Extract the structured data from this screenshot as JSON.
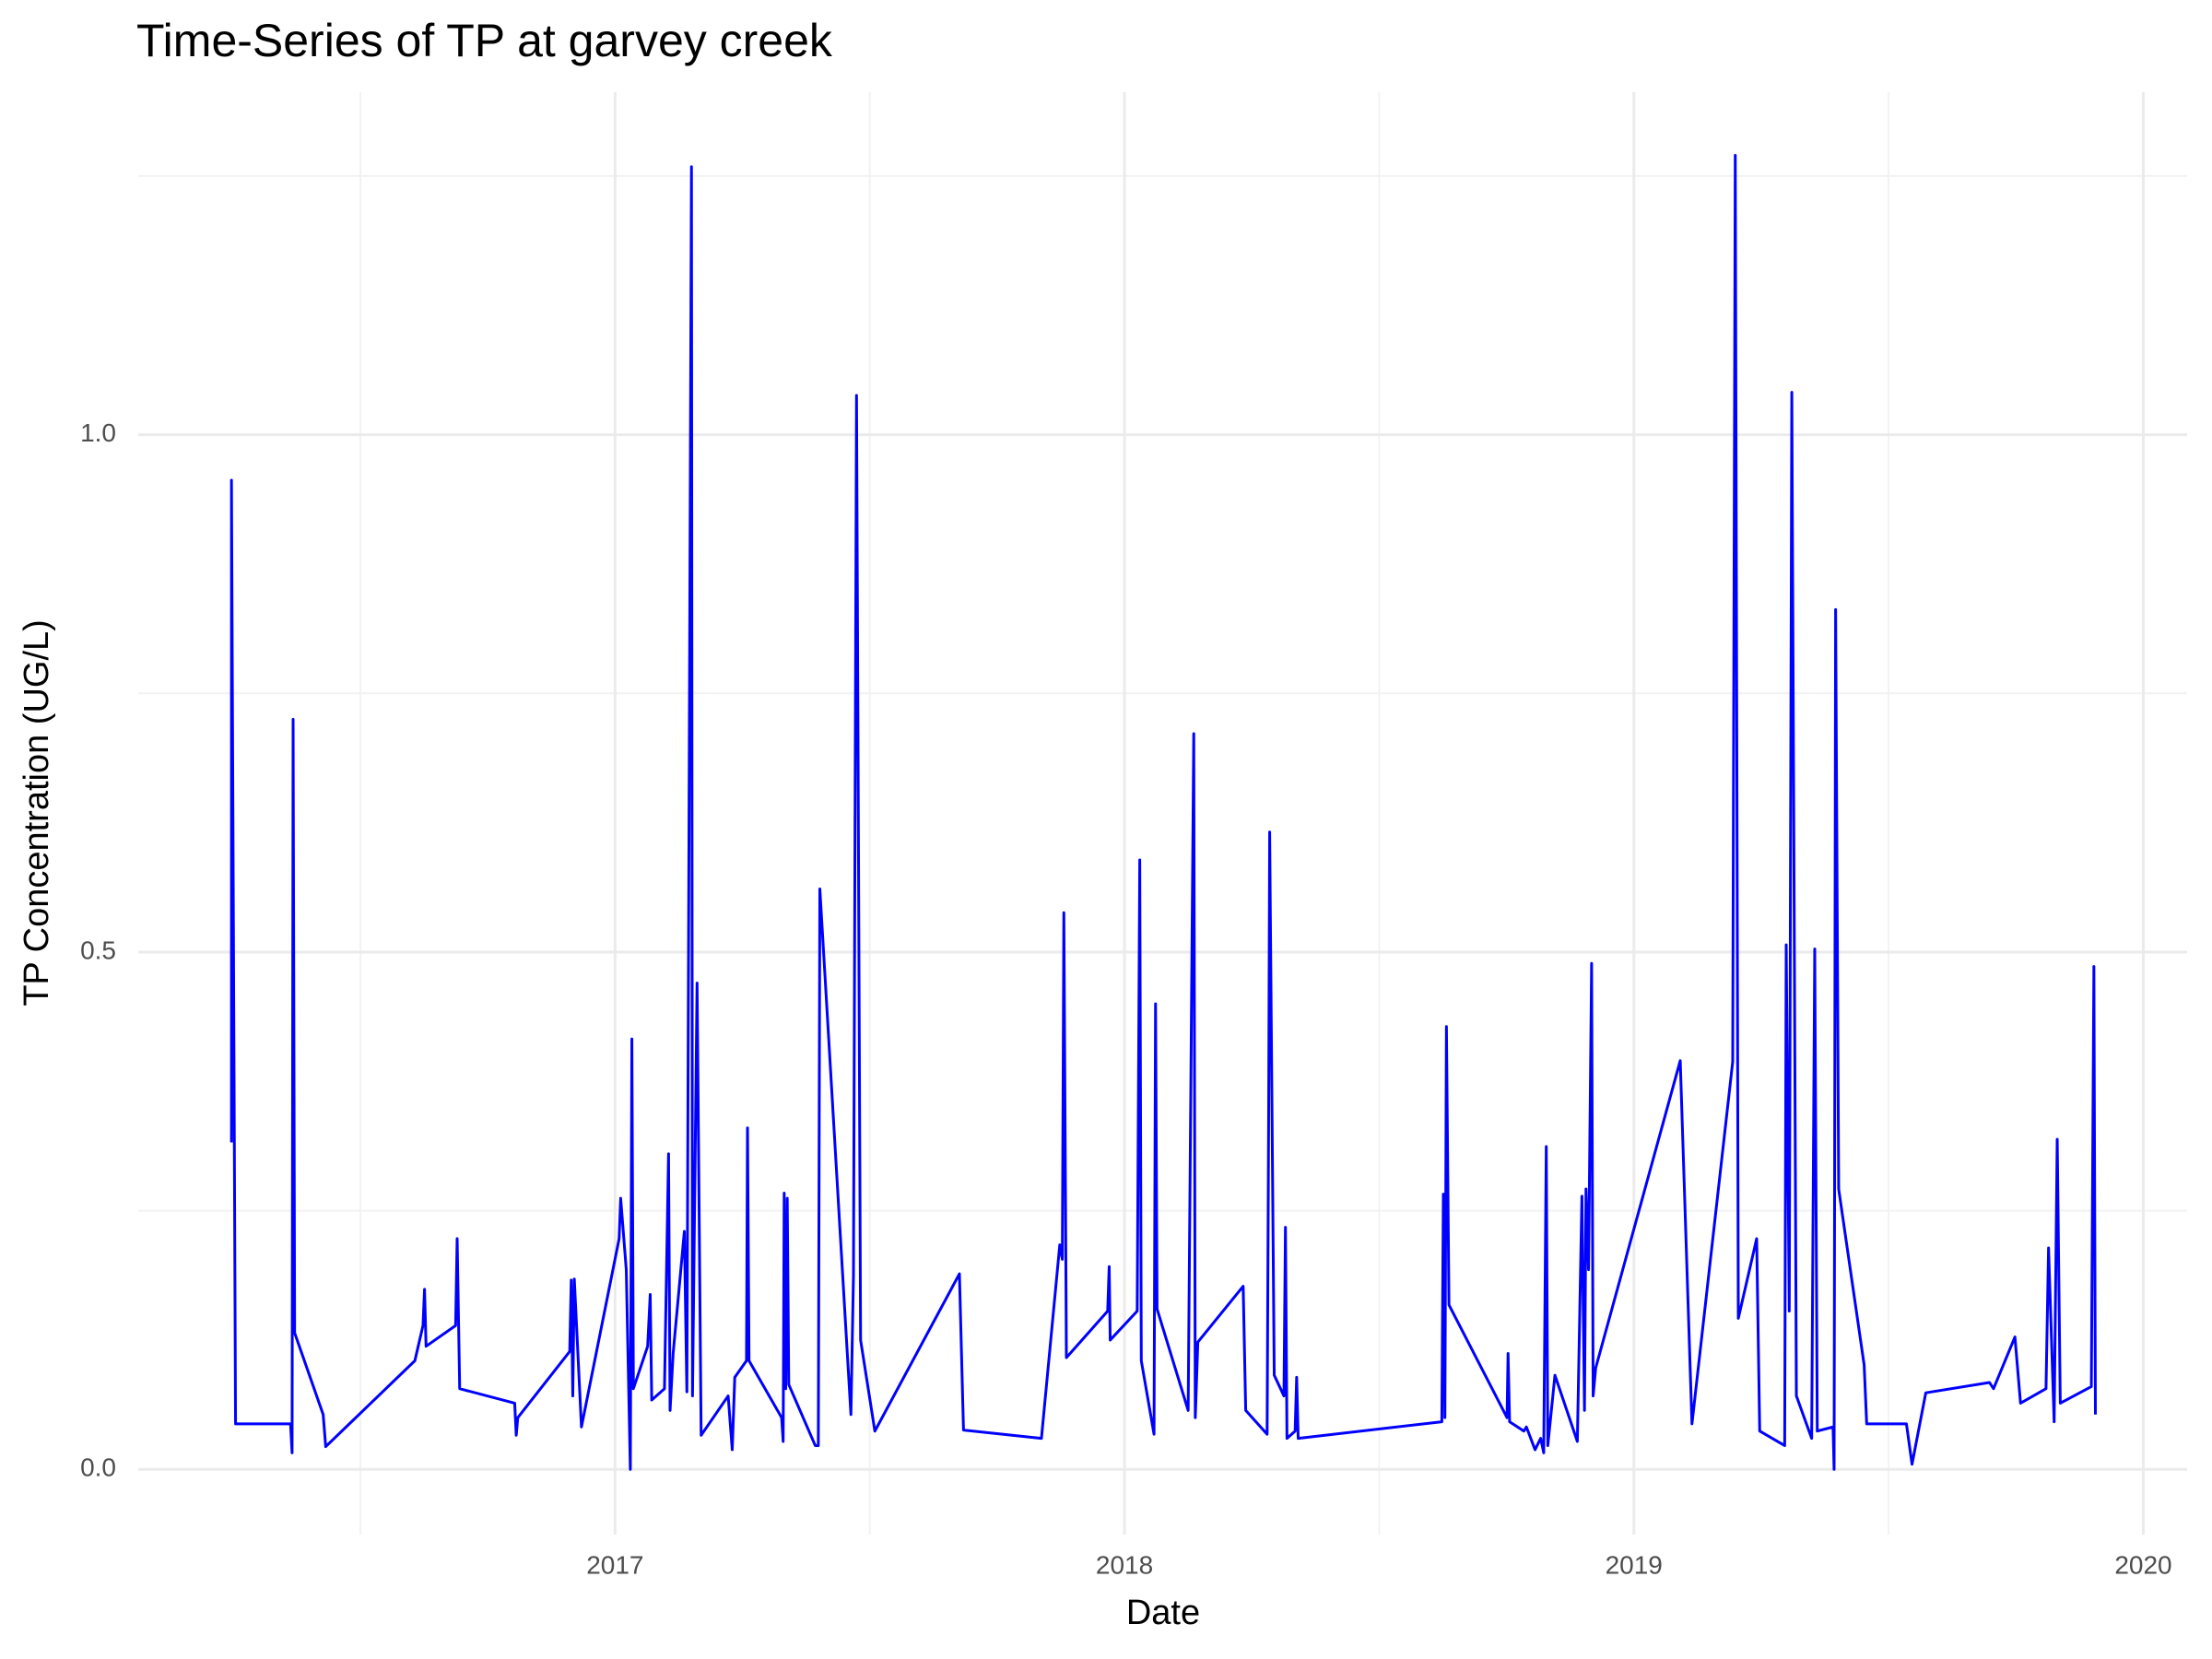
{
  "chart_data": {
    "type": "line",
    "title": "Time-Series of TP at garvey creek",
    "xlabel": "Date",
    "ylabel": "TP Concentration (UG/L)",
    "color": "#0000ff",
    "grid": true,
    "minor_grid": true,
    "xlim": [
      2016.064,
      2020.086
    ],
    "xticks": [
      2017,
      2018,
      2019,
      2020
    ],
    "ylim": [
      -0.063,
      1.331
    ],
    "yticks": [
      {
        "value": 0,
        "label": "0.0"
      },
      {
        "value": 0.5,
        "label": "0.5"
      },
      {
        "value": 1,
        "label": "1.0"
      }
    ],
    "x": [
      2016.247,
      2016.247,
      2016.255,
      2016.363,
      2016.366,
      2016.368,
      2016.371,
      2016.427,
      2016.432,
      2016.607,
      2016.623,
      2016.626,
      2016.629,
      2016.687,
      2016.69,
      2016.695,
      2016.803,
      2016.806,
      2016.809,
      2016.911,
      2016.914,
      2016.917,
      2016.92,
      2016.934,
      2017.008,
      2017.011,
      2017.022,
      2017.03,
      2017.033,
      2017.036,
      2017.064,
      2017.069,
      2017.072,
      2017.097,
      2017.105,
      2017.108,
      2017.114,
      2017.136,
      2017.141,
      2017.15,
      2017.152,
      2017.161,
      2017.169,
      2017.222,
      2017.23,
      2017.235,
      2017.258,
      2017.26,
      2017.263,
      2017.327,
      2017.33,
      2017.332,
      2017.335,
      2017.338,
      2017.341,
      2017.393,
      2017.399,
      2017.402,
      2017.463,
      2017.468,
      2017.474,
      2017.482,
      2017.51,
      2017.676,
      2017.684,
      2017.837,
      2017.873,
      2017.878,
      2017.881,
      2017.886,
      2017.967,
      2017.97,
      2017.972,
      2018.025,
      2018.03,
      2018.033,
      2018.058,
      2018.061,
      2018.064,
      2018.125,
      2018.136,
      2018.139,
      2018.144,
      2018.233,
      2018.238,
      2018.28,
      2018.283,
      2018.285,
      2018.294,
      2018.313,
      2018.316,
      2018.319,
      2018.335,
      2018.338,
      2018.341,
      2018.623,
      2018.626,
      2018.629,
      2018.632,
      2018.637,
      2018.751,
      2018.753,
      2018.756,
      2018.784,
      2018.789,
      2018.806,
      2018.817,
      2018.823,
      2018.828,
      2018.831,
      2018.845,
      2018.889,
      2018.898,
      2018.903,
      2018.906,
      2018.911,
      2018.917,
      2018.92,
      2018.925,
      2019.091,
      2019.114,
      2019.194,
      2019.199,
      2019.205,
      2019.241,
      2019.247,
      2019.296,
      2019.299,
      2019.305,
      2019.31,
      2019.319,
      2019.349,
      2019.355,
      2019.36,
      2019.391,
      2019.393,
      2019.396,
      2019.402,
      2019.452,
      2019.457,
      2019.535,
      2019.546,
      2019.573,
      2019.698,
      2019.706,
      2019.748,
      2019.759,
      2019.809,
      2019.814,
      2019.825,
      2019.831,
      2019.837,
      2019.898,
      2019.903,
      2019.906
    ],
    "values": [
      0.316,
      0.956,
      0.044,
      0.044,
      0.016,
      0.725,
      0.132,
      0.053,
      0.022,
      0.105,
      0.139,
      0.174,
      0.119,
      0.139,
      0.223,
      0.078,
      0.064,
      0.033,
      0.05,
      0.114,
      0.183,
      0.071,
      0.184,
      0.041,
      0.223,
      0.262,
      0.193,
      0,
      0.416,
      0.078,
      0.119,
      0.169,
      0.067,
      0.078,
      0.305,
      0.057,
      0.112,
      0.23,
      0.075,
      1.259,
      0.071,
      0.47,
      0.033,
      0.071,
      0.019,
      0.089,
      0.105,
      0.33,
      0.105,
      0.05,
      0.027,
      0.267,
      0.078,
      0.262,
      0.082,
      0.023,
      0.023,
      0.561,
      0.053,
      0.187,
      1.038,
      0.125,
      0.037,
      0.189,
      0.038,
      0.03,
      0.217,
      0.203,
      0.538,
      0.108,
      0.153,
      0.196,
      0.125,
      0.153,
      0.589,
      0.105,
      0.034,
      0.45,
      0.155,
      0.057,
      0.711,
      0.05,
      0.123,
      0.177,
      0.057,
      0.034,
      0.339,
      0.616,
      0.091,
      0.071,
      0.234,
      0.03,
      0.037,
      0.089,
      0.03,
      0.046,
      0.266,
      0.05,
      0.428,
      0.159,
      0.05,
      0.112,
      0.046,
      0.037,
      0.041,
      0.019,
      0.03,
      0.016,
      0.312,
      0.023,
      0.091,
      0.027,
      0.264,
      0.057,
      0.271,
      0.193,
      0.489,
      0.071,
      0.098,
      0.395,
      0.044,
      0.394,
      1.27,
      0.146,
      0.223,
      0.037,
      0.023,
      0.507,
      0.153,
      1.041,
      0.071,
      0.03,
      0.503,
      0.037,
      0.041,
      0,
      0.831,
      0.271,
      0.101,
      0.044,
      0.044,
      0.005,
      0.074,
      0.084,
      0.078,
      0.128,
      0.064,
      0.078,
      0.214,
      0.046,
      0.319,
      0.064,
      0.08,
      0.486,
      0.053
    ]
  }
}
